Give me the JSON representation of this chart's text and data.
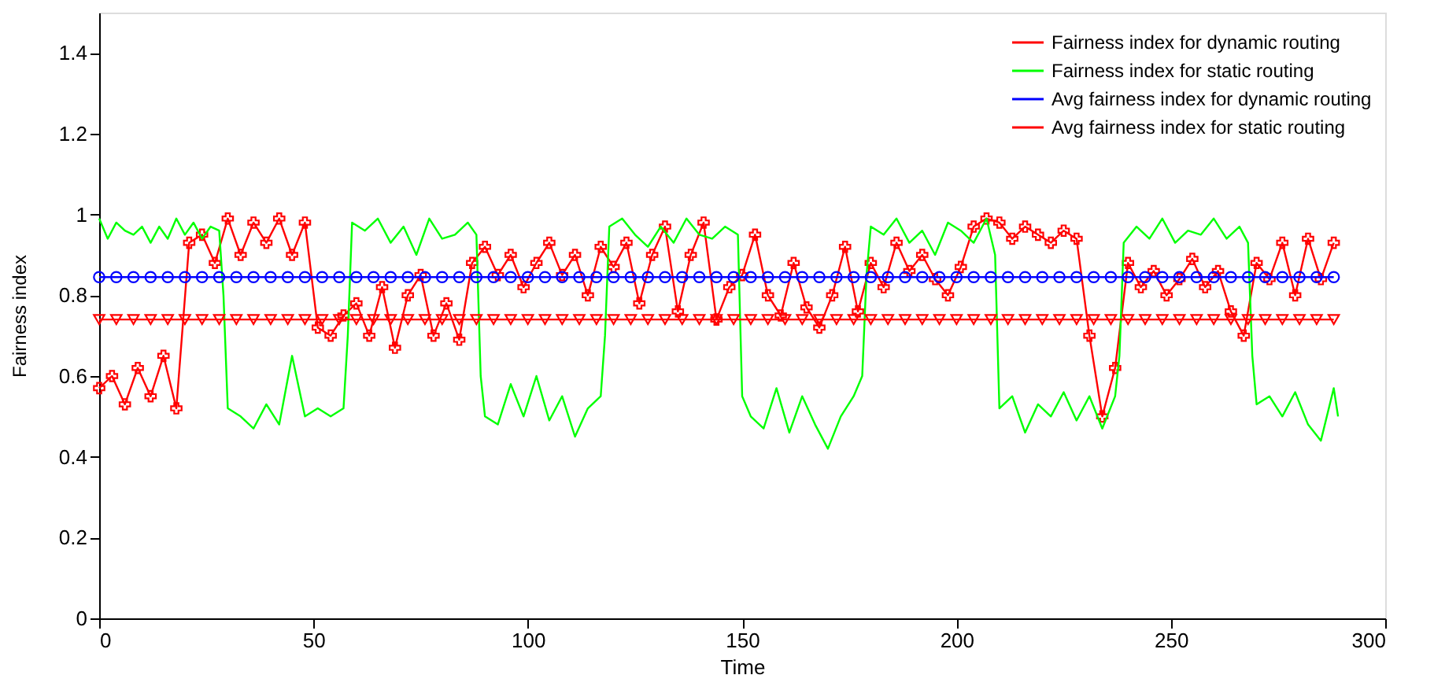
{
  "chart_data": {
    "type": "line",
    "xlabel": "Time",
    "ylabel": "Fairness index",
    "xlim": [
      0,
      300
    ],
    "xticks": [
      0,
      50,
      100,
      150,
      200,
      250,
      300
    ],
    "ylim": [
      0,
      1.5
    ],
    "yticks": [
      0,
      0.2,
      0.4,
      0.6,
      0.8,
      1,
      1.2,
      1.4
    ],
    "grid": false,
    "legend": "top right",
    "series": [
      {
        "name": "Fairness index for dynamic routing",
        "color": "#ff0000",
        "marker": "cross",
        "x": [
          0,
          3,
          6,
          9,
          12,
          15,
          18,
          21,
          24,
          27,
          30,
          33,
          36,
          39,
          42,
          45,
          48,
          51,
          54,
          57,
          60,
          63,
          66,
          69,
          72,
          75,
          78,
          81,
          84,
          87,
          90,
          93,
          96,
          99,
          102,
          105,
          108,
          111,
          114,
          117,
          120,
          123,
          126,
          129,
          132,
          135,
          138,
          141,
          144,
          147,
          150,
          153,
          156,
          159,
          162,
          165,
          168,
          171,
          174,
          177,
          180,
          183,
          186,
          189,
          192,
          195,
          198,
          201,
          204,
          207,
          210,
          213,
          216,
          219,
          222,
          225,
          228,
          231,
          234,
          237,
          240,
          243,
          246,
          249,
          252,
          255,
          258,
          261,
          264,
          267,
          270,
          273,
          276,
          279,
          282,
          285,
          288
        ],
        "values": [
          0.57,
          0.6,
          0.53,
          0.62,
          0.55,
          0.65,
          0.52,
          0.93,
          0.95,
          0.88,
          0.99,
          0.9,
          0.98,
          0.93,
          0.99,
          0.9,
          0.98,
          0.72,
          0.7,
          0.75,
          0.78,
          0.7,
          0.82,
          0.67,
          0.8,
          0.85,
          0.7,
          0.78,
          0.69,
          0.88,
          0.92,
          0.85,
          0.9,
          0.82,
          0.88,
          0.93,
          0.85,
          0.9,
          0.8,
          0.92,
          0.87,
          0.93,
          0.78,
          0.9,
          0.97,
          0.76,
          0.9,
          0.98,
          0.74,
          0.82,
          0.85,
          0.95,
          0.8,
          0.75,
          0.88,
          0.77,
          0.72,
          0.8,
          0.92,
          0.76,
          0.88,
          0.82,
          0.93,
          0.86,
          0.9,
          0.84,
          0.8,
          0.87,
          0.97,
          0.99,
          0.98,
          0.94,
          0.97,
          0.95,
          0.93,
          0.96,
          0.94,
          0.7,
          0.5,
          0.62,
          0.88,
          0.82,
          0.86,
          0.8,
          0.84,
          0.89,
          0.82,
          0.86,
          0.76,
          0.7,
          0.88,
          0.84,
          0.93,
          0.8,
          0.94,
          0.84,
          0.93
        ]
      },
      {
        "name": "Fairness index for static routing",
        "color": "#00ff00",
        "x": [
          0,
          2,
          4,
          6,
          8,
          10,
          12,
          14,
          16,
          18,
          20,
          22,
          24,
          26,
          28,
          29,
          30,
          33,
          36,
          39,
          42,
          45,
          48,
          51,
          54,
          57,
          58,
          59,
          62,
          65,
          68,
          71,
          74,
          77,
          80,
          83,
          86,
          88,
          89,
          90,
          93,
          96,
          99,
          102,
          105,
          108,
          111,
          114,
          117,
          118,
          119,
          122,
          125,
          128,
          131,
          134,
          137,
          140,
          143,
          146,
          149,
          150,
          152,
          155,
          158,
          161,
          164,
          167,
          170,
          173,
          176,
          178,
          179,
          180,
          183,
          186,
          189,
          192,
          195,
          198,
          201,
          204,
          207,
          209,
          210,
          213,
          216,
          219,
          222,
          225,
          228,
          231,
          234,
          237,
          238,
          239,
          242,
          245,
          248,
          251,
          254,
          257,
          260,
          263,
          266,
          268,
          269,
          270,
          273,
          276,
          279,
          282,
          285,
          288,
          289
        ],
        "values": [
          0.99,
          0.94,
          0.98,
          0.96,
          0.95,
          0.97,
          0.93,
          0.97,
          0.94,
          0.99,
          0.95,
          0.98,
          0.94,
          0.97,
          0.96,
          0.8,
          0.52,
          0.5,
          0.47,
          0.53,
          0.48,
          0.65,
          0.5,
          0.52,
          0.5,
          0.52,
          0.7,
          0.98,
          0.96,
          0.99,
          0.93,
          0.97,
          0.9,
          0.99,
          0.94,
          0.95,
          0.98,
          0.95,
          0.6,
          0.5,
          0.48,
          0.58,
          0.5,
          0.6,
          0.49,
          0.55,
          0.45,
          0.52,
          0.55,
          0.7,
          0.97,
          0.99,
          0.95,
          0.92,
          0.97,
          0.93,
          0.99,
          0.95,
          0.94,
          0.97,
          0.95,
          0.55,
          0.5,
          0.47,
          0.57,
          0.46,
          0.55,
          0.48,
          0.42,
          0.5,
          0.55,
          0.6,
          0.85,
          0.97,
          0.95,
          0.99,
          0.93,
          0.96,
          0.9,
          0.98,
          0.96,
          0.93,
          0.99,
          0.9,
          0.52,
          0.55,
          0.46,
          0.53,
          0.5,
          0.56,
          0.49,
          0.55,
          0.47,
          0.55,
          0.65,
          0.93,
          0.97,
          0.94,
          0.99,
          0.93,
          0.96,
          0.95,
          0.99,
          0.94,
          0.97,
          0.93,
          0.65,
          0.53,
          0.55,
          0.5,
          0.56,
          0.48,
          0.44,
          0.57,
          0.5
        ]
      },
      {
        "name": "Avg fairness index for dynamic routing",
        "color": "#0000ff",
        "marker": "circle",
        "x": [
          0,
          4,
          8,
          12,
          16,
          20,
          24,
          28,
          32,
          36,
          40,
          44,
          48,
          52,
          56,
          60,
          64,
          68,
          72,
          76,
          80,
          84,
          88,
          92,
          96,
          100,
          104,
          108,
          112,
          116,
          120,
          124,
          128,
          132,
          136,
          140,
          144,
          148,
          152,
          156,
          160,
          164,
          168,
          172,
          176,
          180,
          184,
          188,
          192,
          196,
          200,
          204,
          208,
          212,
          216,
          220,
          224,
          228,
          232,
          236,
          240,
          244,
          248,
          252,
          256,
          260,
          264,
          268,
          272,
          276,
          280,
          284,
          288
        ],
        "values": [
          0.845,
          0.845,
          0.845,
          0.845,
          0.845,
          0.845,
          0.845,
          0.845,
          0.845,
          0.845,
          0.845,
          0.845,
          0.845,
          0.845,
          0.845,
          0.845,
          0.845,
          0.845,
          0.845,
          0.845,
          0.845,
          0.845,
          0.845,
          0.845,
          0.845,
          0.845,
          0.845,
          0.845,
          0.845,
          0.845,
          0.845,
          0.845,
          0.845,
          0.845,
          0.845,
          0.845,
          0.845,
          0.845,
          0.845,
          0.845,
          0.845,
          0.845,
          0.845,
          0.845,
          0.845,
          0.845,
          0.845,
          0.845,
          0.845,
          0.845,
          0.845,
          0.845,
          0.845,
          0.845,
          0.845,
          0.845,
          0.845,
          0.845,
          0.845,
          0.845,
          0.845,
          0.845,
          0.845,
          0.845,
          0.845,
          0.845,
          0.845,
          0.845,
          0.845,
          0.845,
          0.845,
          0.845,
          0.845
        ]
      },
      {
        "name": "Avg fairness index for static routing",
        "color": "#ff0000",
        "marker": "triangle",
        "x": [
          0,
          4,
          8,
          12,
          16,
          20,
          24,
          28,
          32,
          36,
          40,
          44,
          48,
          52,
          56,
          60,
          64,
          68,
          72,
          76,
          80,
          84,
          88,
          92,
          96,
          100,
          104,
          108,
          112,
          116,
          120,
          124,
          128,
          132,
          136,
          140,
          144,
          148,
          152,
          156,
          160,
          164,
          168,
          172,
          176,
          180,
          184,
          188,
          192,
          196,
          200,
          204,
          208,
          212,
          216,
          220,
          224,
          228,
          232,
          236,
          240,
          244,
          248,
          252,
          256,
          260,
          264,
          268,
          272,
          276,
          280,
          284,
          288
        ],
        "values": [
          0.74,
          0.74,
          0.74,
          0.74,
          0.74,
          0.74,
          0.74,
          0.74,
          0.74,
          0.74,
          0.74,
          0.74,
          0.74,
          0.74,
          0.74,
          0.74,
          0.74,
          0.74,
          0.74,
          0.74,
          0.74,
          0.74,
          0.74,
          0.74,
          0.74,
          0.74,
          0.74,
          0.74,
          0.74,
          0.74,
          0.74,
          0.74,
          0.74,
          0.74,
          0.74,
          0.74,
          0.74,
          0.74,
          0.74,
          0.74,
          0.74,
          0.74,
          0.74,
          0.74,
          0.74,
          0.74,
          0.74,
          0.74,
          0.74,
          0.74,
          0.74,
          0.74,
          0.74,
          0.74,
          0.74,
          0.74,
          0.74,
          0.74,
          0.74,
          0.74,
          0.74,
          0.74,
          0.74,
          0.74,
          0.74,
          0.74,
          0.74,
          0.74,
          0.74,
          0.74,
          0.74,
          0.74,
          0.74
        ]
      }
    ]
  }
}
